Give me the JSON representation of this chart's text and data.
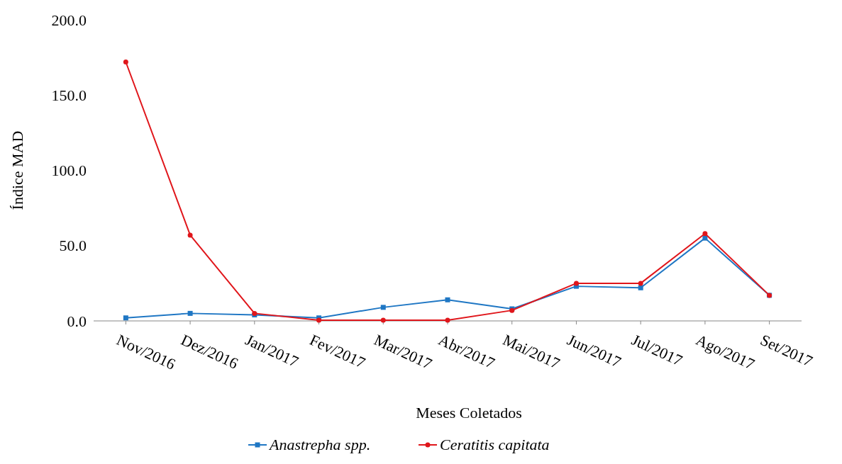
{
  "chart_data": {
    "type": "line",
    "xlabel": "Meses Coletados",
    "ylabel": "Índice MAD",
    "categories": [
      "Nov/2016",
      "Dez/2016",
      "Jan/2017",
      "Fev/2017",
      "Mar/2017",
      "Abr/2017",
      "Mai/2017",
      "Jun/2017",
      "Jul/2017",
      "Ago/2017",
      "Set/2017"
    ],
    "series": [
      {
        "name": "Anastrepha spp.",
        "color": "#1f77c4",
        "marker": "square",
        "values": [
          2,
          5,
          4,
          2,
          9,
          14,
          8,
          23,
          22,
          55,
          17
        ]
      },
      {
        "name": "Ceratitis capitata",
        "color": "#e0161b",
        "marker": "circle",
        "values": [
          172,
          57,
          5,
          0.5,
          0.5,
          0.5,
          7,
          25,
          25,
          58,
          17
        ]
      }
    ],
    "ylim": [
      0,
      200
    ],
    "yticks": [
      {
        "value": 0,
        "label": "0.0"
      },
      {
        "value": 50,
        "label": "50.0"
      },
      {
        "value": 100,
        "label": "100.0"
      },
      {
        "value": 150,
        "label": "150.0"
      },
      {
        "value": 200,
        "label": "200.0"
      }
    ],
    "grid": false,
    "legend": "bottom",
    "line_style": "solid"
  }
}
